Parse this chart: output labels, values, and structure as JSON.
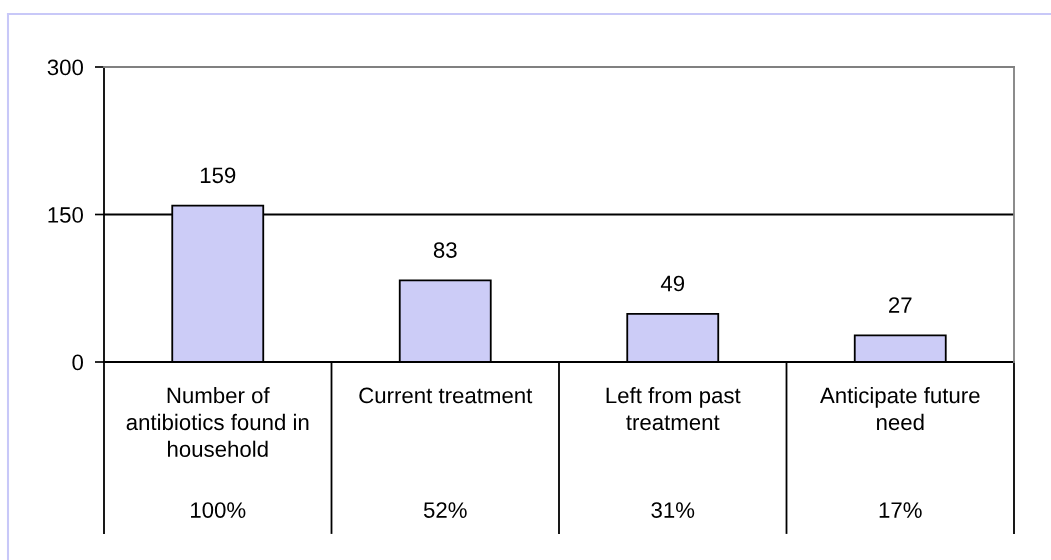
{
  "chart_data": {
    "type": "bar",
    "categories": [
      "Number of antibiotics found in household",
      "Current treatment",
      "Left from past treatment",
      "Anticipate future need"
    ],
    "values": [
      159,
      83,
      49,
      27
    ],
    "color": "#ccccf7",
    "ylim": [
      0,
      300
    ],
    "yticks": [
      0,
      150,
      300
    ],
    "grid": "y",
    "data_labels": true,
    "annotations": [
      "100%",
      "52%",
      "31%",
      "17%"
    ]
  }
}
